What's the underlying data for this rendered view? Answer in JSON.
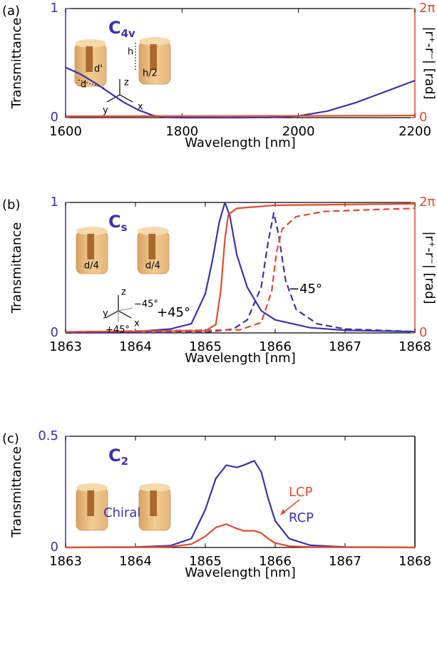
{
  "chart_data": [
    {
      "type": "line",
      "panel": "(a)",
      "symbol": "C",
      "symbol_sub": "4v",
      "x_label": "Wavelength [nm]",
      "y_label": "Transmittance",
      "y2_label": "|r⁺-r⁻| [rad]",
      "xlim": [
        1600,
        2200
      ],
      "xticks": [
        1600,
        1800,
        2000,
        2200
      ],
      "ylim": [
        0,
        1
      ],
      "yticks": [
        0,
        1
      ],
      "y2lim": [
        0,
        6.2832
      ],
      "y2ticks": [
        0,
        {
          "value": 6.2832,
          "label": "2π"
        }
      ],
      "inset_labels": [
        "h",
        "d'",
        "d",
        "h/2",
        "z",
        "y",
        "x"
      ],
      "series": [
        {
          "color": "#3b32b0",
          "x": [
            1600,
            1625,
            1650,
            1675,
            1700,
            1725,
            1750,
            1775,
            1800,
            1850,
            1900,
            1950,
            2000,
            2050,
            2100,
            2150,
            2200
          ],
          "values": [
            0.46,
            0.4,
            0.32,
            0.23,
            0.14,
            0.07,
            0.02,
            0.003,
            0,
            0,
            0,
            0.002,
            0.015,
            0.06,
            0.14,
            0.24,
            0.34
          ]
        },
        {
          "color": "#e64a2e",
          "axis": "y2",
          "x": [
            1600,
            1800,
            2000,
            2200
          ],
          "values": [
            0.08,
            0.09,
            0.1,
            0.12
          ]
        }
      ]
    },
    {
      "type": "line",
      "panel": "(b)",
      "symbol": "C",
      "symbol_sub": "s",
      "x_label": "Wavelength [nm]",
      "y_label": "Transmittance",
      "y2_label": "|r⁺-r⁻| [rad]",
      "xlim": [
        1863,
        1868
      ],
      "xticks": [
        1863,
        1864,
        1865,
        1866,
        1867,
        1868
      ],
      "ylim": [
        0,
        1
      ],
      "yticks": [
        0,
        1
      ],
      "y2lim": [
        0,
        6.2832
      ],
      "y2ticks": [
        0,
        {
          "value": 6.2832,
          "label": "2π"
        }
      ],
      "inset_labels": [
        "d/4",
        "d/4",
        "z",
        "y",
        "x",
        "−45°",
        "+45°"
      ],
      "curve_labels": [
        "−45°",
        "+45°"
      ],
      "series": [
        {
          "color": "#3b32b0",
          "x": [
            1863,
            1864,
            1864.5,
            1864.8,
            1865,
            1865.1,
            1865.2,
            1865.28,
            1865.35,
            1865.45,
            1865.6,
            1865.8,
            1866,
            1866.5,
            1867,
            1868
          ],
          "values": [
            0.005,
            0.01,
            0.03,
            0.07,
            0.3,
            0.55,
            0.85,
            1.0,
            0.9,
            0.6,
            0.35,
            0.17,
            0.1,
            0.04,
            0.02,
            0.01
          ]
        },
        {
          "color": "#e64a2e",
          "axis": "y2",
          "x": [
            1863,
            1865,
            1865.15,
            1865.22,
            1865.28,
            1865.33,
            1865.45,
            1866,
            1868
          ],
          "values": [
            0.05,
            0.1,
            0.4,
            2,
            4.5,
            5.7,
            6.0,
            6.15,
            6.22
          ]
        },
        {
          "color": "#3b32b0",
          "dash": true,
          "x": [
            1863,
            1865,
            1865.4,
            1865.6,
            1865.8,
            1865.9,
            1865.98,
            1866.05,
            1866.15,
            1866.3,
            1866.6,
            1867,
            1868
          ],
          "values": [
            0,
            0.005,
            0.03,
            0.1,
            0.35,
            0.7,
            0.92,
            0.75,
            0.4,
            0.18,
            0.07,
            0.03,
            0.01
          ]
        },
        {
          "color": "#e64a2e",
          "axis": "y2",
          "dash": true,
          "x": [
            1863,
            1865.5,
            1865.8,
            1865.95,
            1866.02,
            1866.1,
            1866.3,
            1866.7,
            1867.5,
            1868
          ],
          "values": [
            0.05,
            0.15,
            0.5,
            2,
            3.9,
            5,
            5.6,
            5.85,
            5.95,
            6.0
          ]
        }
      ]
    },
    {
      "type": "line",
      "panel": "(c)",
      "symbol": "C",
      "symbol_sub": "2",
      "x_label": "Wavelength [nm]",
      "y_label": "Transmittance",
      "xlim": [
        1863,
        1868
      ],
      "xticks": [
        1863,
        1864,
        1865,
        1866,
        1867,
        1868
      ],
      "ylim": [
        0,
        0.5
      ],
      "yticks": [
        0,
        0.5
      ],
      "inset_labels": [
        "Chiral"
      ],
      "curve_labels": [
        "RCP",
        "LCP"
      ],
      "series": [
        {
          "color": "#3b32b0",
          "x": [
            1863,
            1864,
            1864.5,
            1864.8,
            1865,
            1865.15,
            1865.3,
            1865.45,
            1865.55,
            1865.7,
            1865.8,
            1865.9,
            1866,
            1866.2,
            1866.5,
            1867,
            1868
          ],
          "values": [
            0,
            0.002,
            0.008,
            0.04,
            0.17,
            0.31,
            0.37,
            0.36,
            0.37,
            0.39,
            0.34,
            0.22,
            0.12,
            0.04,
            0.01,
            0.002,
            0
          ]
        },
        {
          "color": "#e64a2e",
          "x": [
            1863,
            1864,
            1864.5,
            1864.8,
            1865,
            1865.15,
            1865.3,
            1865.45,
            1865.55,
            1865.7,
            1865.8,
            1865.9,
            1866,
            1866.2,
            1866.5,
            1867,
            1868
          ],
          "values": [
            0,
            0.001,
            0.003,
            0.015,
            0.05,
            0.09,
            0.105,
            0.085,
            0.075,
            0.075,
            0.065,
            0.04,
            0.02,
            0.006,
            0.002,
            0.001,
            0
          ]
        }
      ]
    }
  ]
}
